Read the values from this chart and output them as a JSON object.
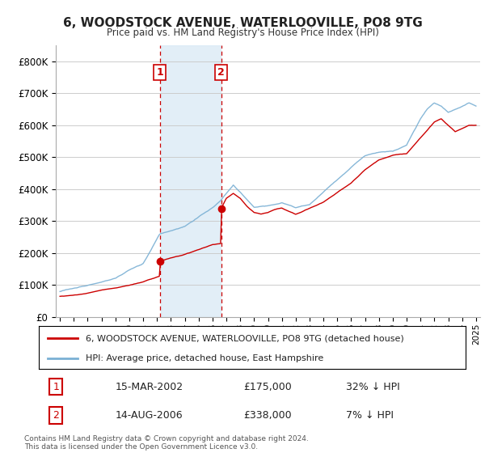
{
  "title": "6, WOODSTOCK AVENUE, WATERLOOVILLE, PO8 9TG",
  "subtitle": "Price paid vs. HM Land Registry's House Price Index (HPI)",
  "legend_line1": "6, WOODSTOCK AVENUE, WATERLOOVILLE, PO8 9TG (detached house)",
  "legend_line2": "HPI: Average price, detached house, East Hampshire",
  "transaction1_label": "1",
  "transaction1_date": "15-MAR-2002",
  "transaction1_price": "£175,000",
  "transaction1_hpi": "32% ↓ HPI",
  "transaction2_label": "2",
  "transaction2_date": "14-AUG-2006",
  "transaction2_price": "£338,000",
  "transaction2_hpi": "7% ↓ HPI",
  "footer": "Contains HM Land Registry data © Crown copyright and database right 2024.\nThis data is licensed under the Open Government Licence v3.0.",
  "line_color_red": "#cc0000",
  "line_color_blue": "#7ab0d4",
  "shade_color": "#d6e8f5",
  "vline_color": "#cc0000",
  "marker_color_red": "#cc0000",
  "background_color": "#ffffff",
  "grid_color": "#cccccc",
  "ylim": [
    0,
    850000
  ],
  "yticks": [
    0,
    100000,
    200000,
    300000,
    400000,
    500000,
    600000,
    700000,
    800000
  ],
  "year_start": 1995,
  "year_end": 2025,
  "transaction1_year": 2002.2,
  "transaction2_year": 2006.62
}
